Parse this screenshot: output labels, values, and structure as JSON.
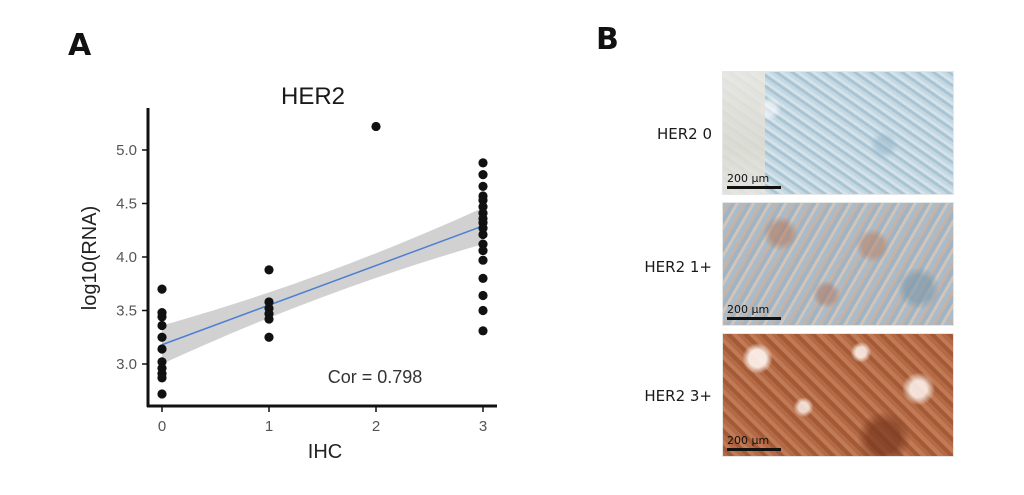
{
  "panel_a": {
    "letter": "A",
    "chart_data": {
      "type": "scatter",
      "title": "HER2",
      "xlabel": "IHC",
      "ylabel": "log10(RNA)",
      "x_ticks": [
        "0",
        "1",
        "2",
        "3"
      ],
      "y_ticks": [
        "3.0",
        "3.5",
        "4.0",
        "4.5",
        "5.0"
      ],
      "xlim": [
        -0.1,
        3.1
      ],
      "ylim": [
        2.65,
        5.35
      ],
      "grid": false,
      "annotation": "Cor = 0.798",
      "points": [
        {
          "x": 0,
          "y": 3.7
        },
        {
          "x": 0,
          "y": 3.48
        },
        {
          "x": 0,
          "y": 3.44
        },
        {
          "x": 0,
          "y": 3.36
        },
        {
          "x": 0,
          "y": 3.25
        },
        {
          "x": 0,
          "y": 3.14
        },
        {
          "x": 0,
          "y": 3.02
        },
        {
          "x": 0,
          "y": 2.96
        },
        {
          "x": 0,
          "y": 2.91
        },
        {
          "x": 0,
          "y": 2.87
        },
        {
          "x": 0,
          "y": 2.72
        },
        {
          "x": 1,
          "y": 3.88
        },
        {
          "x": 1,
          "y": 3.58
        },
        {
          "x": 1,
          "y": 3.52
        },
        {
          "x": 1,
          "y": 3.47
        },
        {
          "x": 1,
          "y": 3.42
        },
        {
          "x": 1,
          "y": 3.25
        },
        {
          "x": 2,
          "y": 5.22
        },
        {
          "x": 3,
          "y": 4.88
        },
        {
          "x": 3,
          "y": 4.77
        },
        {
          "x": 3,
          "y": 4.66
        },
        {
          "x": 3,
          "y": 4.57
        },
        {
          "x": 3,
          "y": 4.53
        },
        {
          "x": 3,
          "y": 4.47
        },
        {
          "x": 3,
          "y": 4.41
        },
        {
          "x": 3,
          "y": 4.36
        },
        {
          "x": 3,
          "y": 4.32
        },
        {
          "x": 3,
          "y": 4.27
        },
        {
          "x": 3,
          "y": 4.21
        },
        {
          "x": 3,
          "y": 4.12
        },
        {
          "x": 3,
          "y": 4.06
        },
        {
          "x": 3,
          "y": 3.97
        },
        {
          "x": 3,
          "y": 3.8
        },
        {
          "x": 3,
          "y": 3.64
        },
        {
          "x": 3,
          "y": 3.5
        },
        {
          "x": 3,
          "y": 3.31
        }
      ],
      "fit_line": {
        "intercept": 3.18,
        "slope": 0.37
      },
      "confidence_band": {
        "lower_at_0": 3.0,
        "upper_at_0": 3.36,
        "lower_at_3": 4.12,
        "upper_at_3": 4.46
      },
      "colors": {
        "points": "#111111",
        "fit_line": "#4d7fd1",
        "band": "#c9c9c9",
        "axis": "#111111"
      }
    }
  },
  "panel_b": {
    "letter": "B",
    "rows": [
      {
        "label": "HER2 0",
        "scale_bar": "200 µm"
      },
      {
        "label": "HER2 1+",
        "scale_bar": "200 µm"
      },
      {
        "label": "HER2 3+",
        "scale_bar": "200 µm"
      }
    ]
  }
}
